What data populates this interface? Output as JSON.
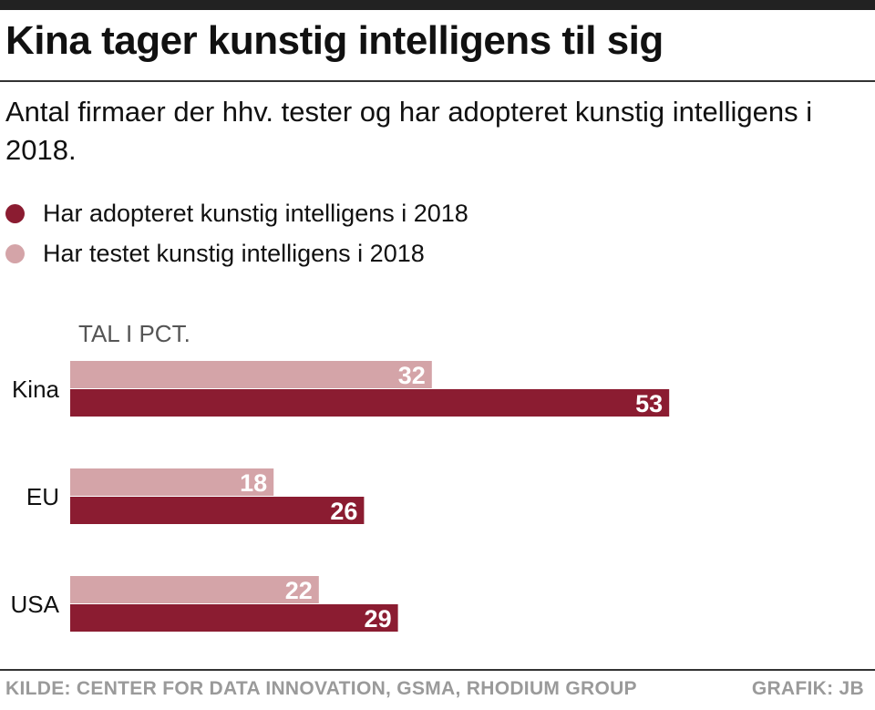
{
  "header": {
    "title": "Kina tager kunstig intelligens til sig",
    "subtitle": "Antal firmaer der hhv. tester og har adopteret kunstig intelligens i 2018."
  },
  "legend": [
    {
      "label": "Har adopteret kunstig intelligens i 2018",
      "color": "#8b1c31"
    },
    {
      "label": "Har testet kunstig intelligens i 2018",
      "color": "#d4a4a8"
    }
  ],
  "chart_data": {
    "type": "bar",
    "orientation": "horizontal",
    "unit_label": "TAL I PCT.",
    "categories": [
      "Kina",
      "EU",
      "USA"
    ],
    "series": [
      {
        "name": "Har testet kunstig intelligens i 2018",
        "color": "#d4a4a8",
        "values": [
          32,
          18,
          22
        ]
      },
      {
        "name": "Har adopteret kunstig intelligens i 2018",
        "color": "#8b1c31",
        "values": [
          53,
          26,
          29
        ]
      }
    ],
    "xlim": [
      0,
      70
    ],
    "grid": false,
    "legend_position": "top-left"
  },
  "footer": {
    "source": "KILDE: CENTER FOR DATA INNOVATION, GSMA, RHODIUM GROUP",
    "credit": "GRAFIK: JB"
  }
}
